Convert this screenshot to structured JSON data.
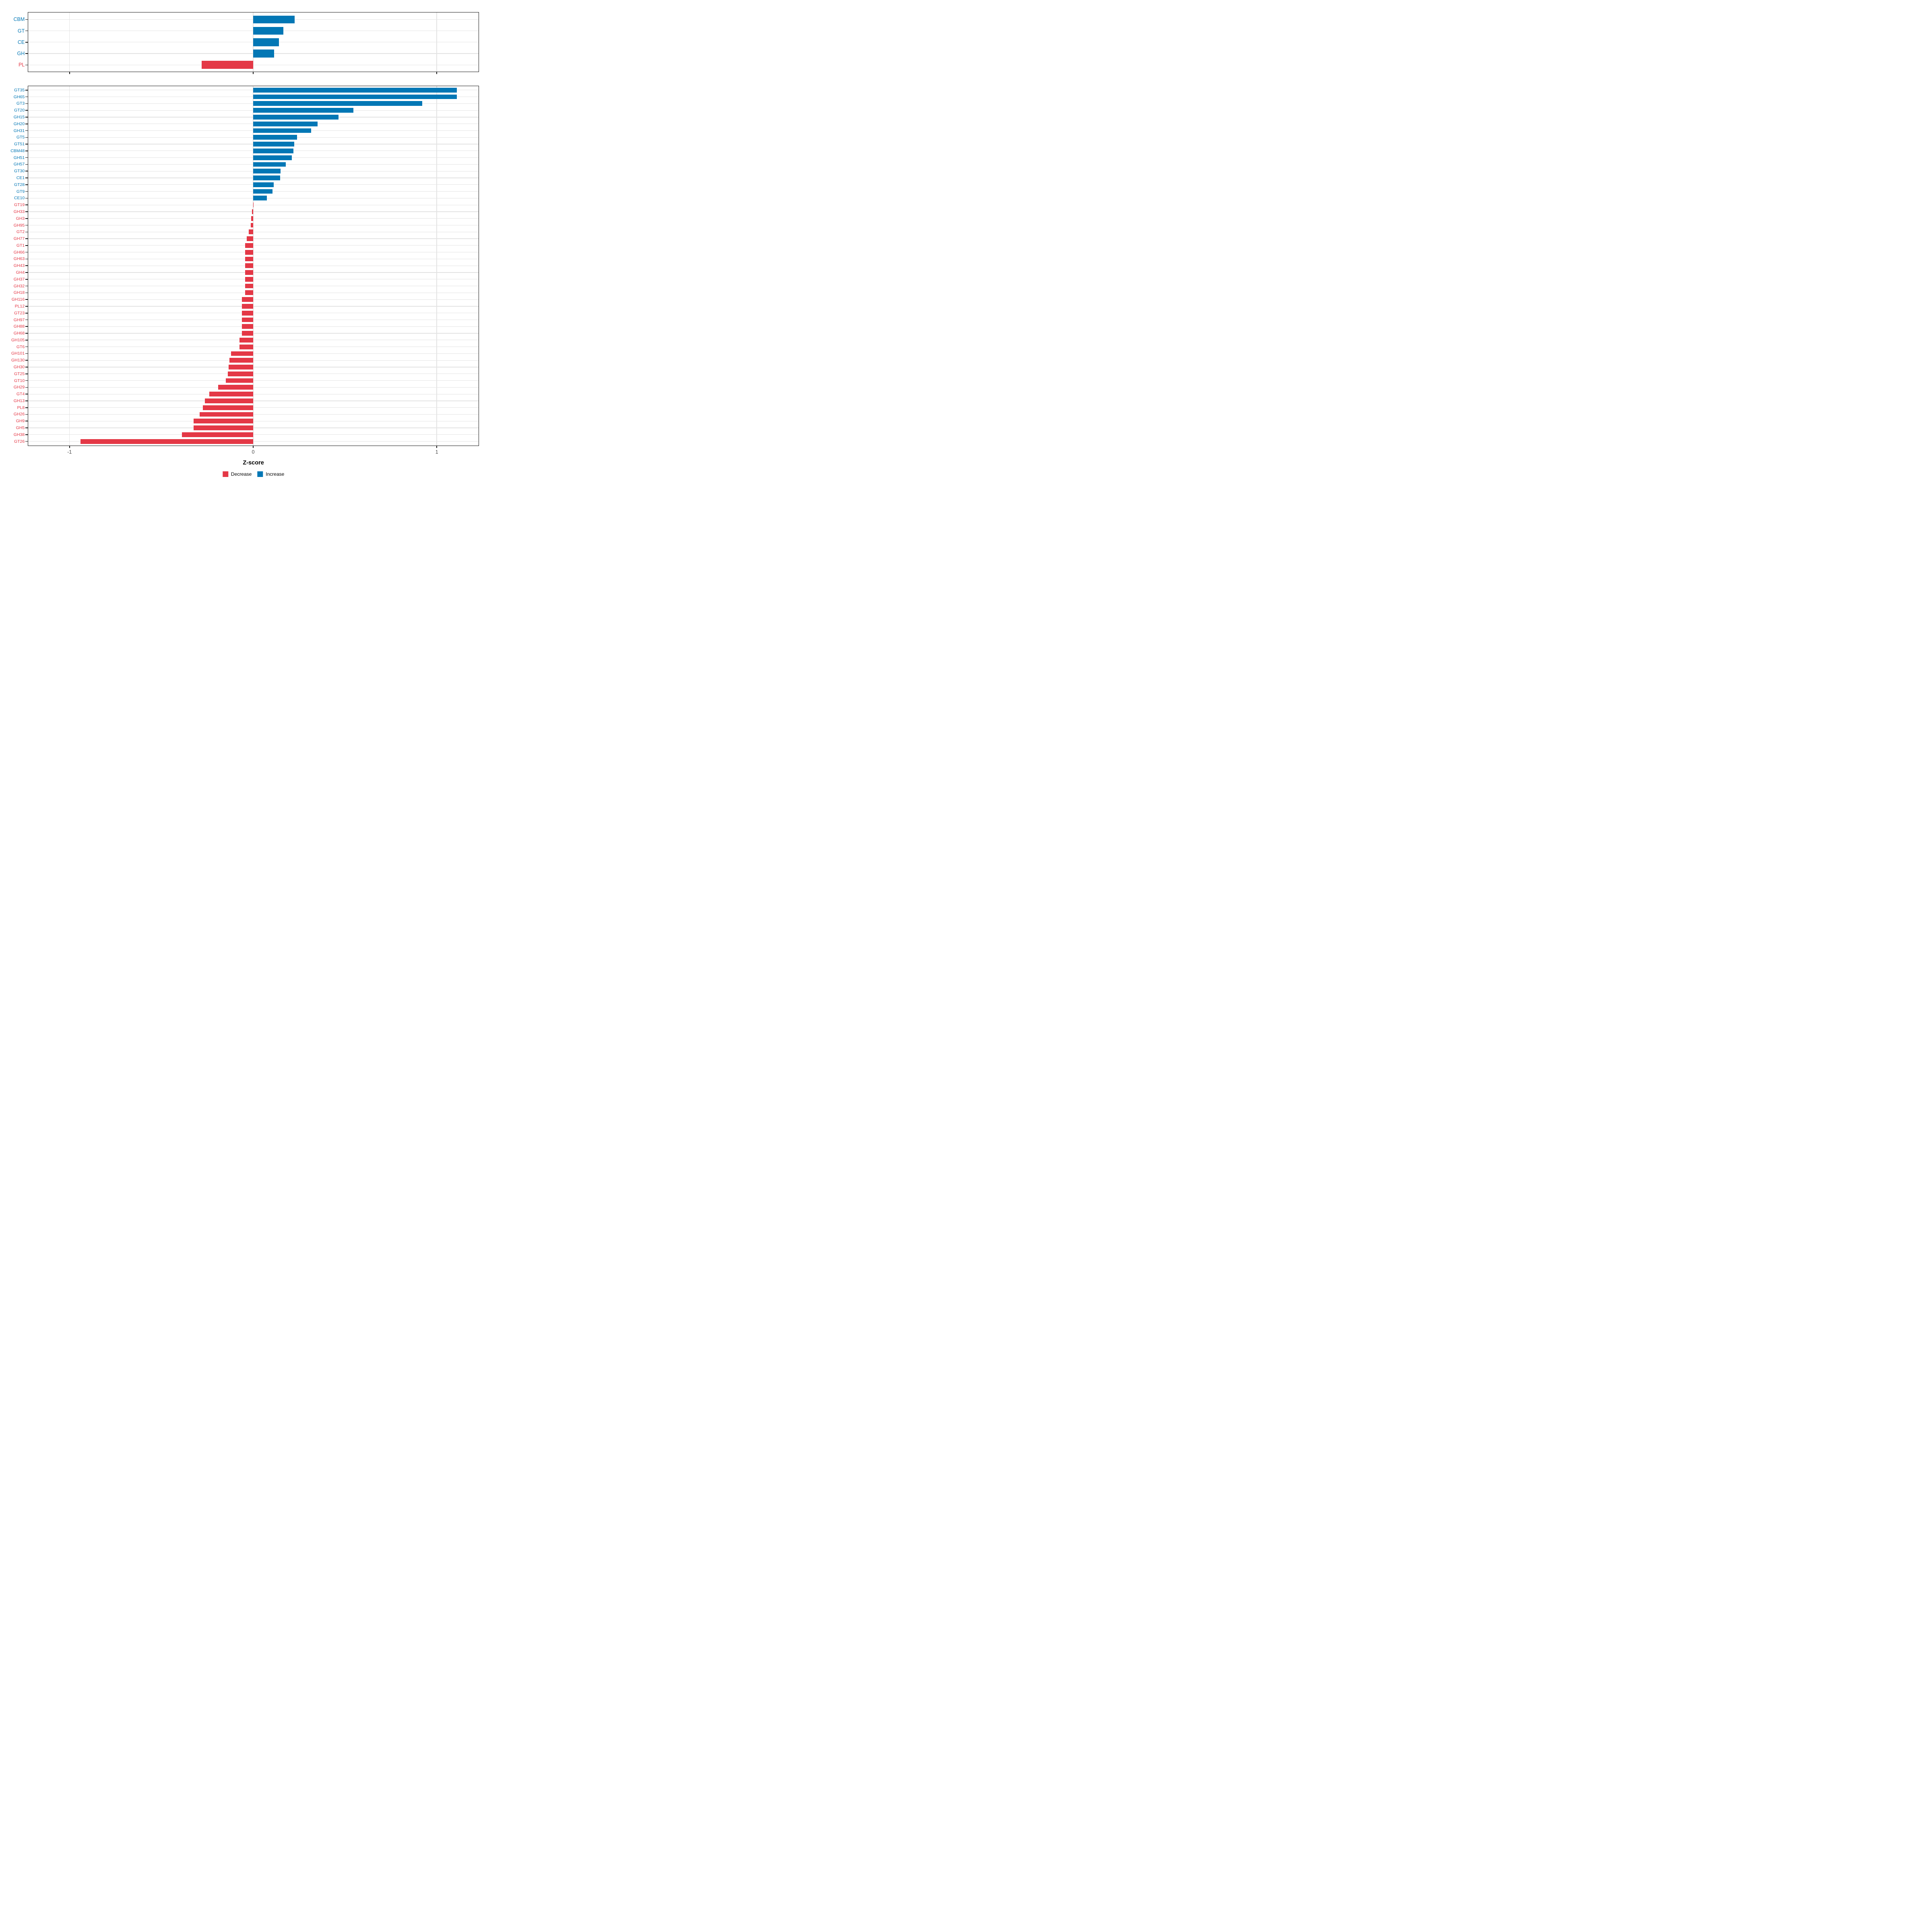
{
  "colors": {
    "increase": "#0277b5",
    "decrease": "#e43846",
    "grid": "#e3e3e3",
    "panel_border": "#1a1a1a",
    "tick_label": "#4a4a4a"
  },
  "xaxis": {
    "title": "Z-score",
    "domain": [
      -1.2248,
      1.2276
    ],
    "ticks": [
      {
        "value": -1,
        "label": "-1"
      },
      {
        "value": 0,
        "label": "0"
      },
      {
        "value": 1,
        "label": "1"
      }
    ]
  },
  "legend": [
    {
      "label": "Decrease",
      "direction": "decrease"
    },
    {
      "label": "Increase",
      "direction": "increase"
    }
  ],
  "chart_data": [
    {
      "type": "bar",
      "orientation": "horizontal",
      "panel": "top",
      "show_x_labels": false,
      "xlabel": "",
      "rows": [
        {
          "category": "CBM",
          "value": 0.225,
          "direction": "increase"
        },
        {
          "category": "GT",
          "value": 0.165,
          "direction": "increase"
        },
        {
          "category": "CE",
          "value": 0.14,
          "direction": "increase"
        },
        {
          "category": "GH",
          "value": 0.115,
          "direction": "increase"
        },
        {
          "category": "PL",
          "value": -0.28,
          "direction": "decrease"
        }
      ]
    },
    {
      "type": "bar",
      "orientation": "horizontal",
      "panel": "bottom",
      "show_x_labels": true,
      "xlabel": "Z-score",
      "rows": [
        {
          "category": "GT35",
          "value": 1.11,
          "direction": "increase"
        },
        {
          "category": "GH65",
          "value": 1.11,
          "direction": "increase"
        },
        {
          "category": "GT3",
          "value": 0.92,
          "direction": "increase"
        },
        {
          "category": "GT20",
          "value": 0.545,
          "direction": "increase"
        },
        {
          "category": "GH15",
          "value": 0.465,
          "direction": "increase"
        },
        {
          "category": "GH20",
          "value": 0.35,
          "direction": "increase"
        },
        {
          "category": "GH31",
          "value": 0.315,
          "direction": "increase"
        },
        {
          "category": "GT5",
          "value": 0.238,
          "direction": "increase"
        },
        {
          "category": "GT51",
          "value": 0.224,
          "direction": "increase"
        },
        {
          "category": "CBM48",
          "value": 0.22,
          "direction": "increase"
        },
        {
          "category": "GH51",
          "value": 0.21,
          "direction": "increase"
        },
        {
          "category": "GH57",
          "value": 0.178,
          "direction": "increase"
        },
        {
          "category": "GT30",
          "value": 0.15,
          "direction": "increase"
        },
        {
          "category": "CE1",
          "value": 0.146,
          "direction": "increase"
        },
        {
          "category": "GT28",
          "value": 0.112,
          "direction": "increase"
        },
        {
          "category": "GT9",
          "value": 0.105,
          "direction": "increase"
        },
        {
          "category": "CE10",
          "value": 0.075,
          "direction": "increase"
        },
        {
          "category": "GT19",
          "value": -0.001,
          "direction": "decrease"
        },
        {
          "category": "GH33",
          "value": -0.007,
          "direction": "decrease"
        },
        {
          "category": "GH3",
          "value": -0.011,
          "direction": "decrease"
        },
        {
          "category": "GH95",
          "value": -0.014,
          "direction": "decrease"
        },
        {
          "category": "GT2",
          "value": -0.024,
          "direction": "decrease"
        },
        {
          "category": "GH77",
          "value": -0.035,
          "direction": "decrease"
        },
        {
          "category": "GT1",
          "value": -0.044,
          "direction": "decrease"
        },
        {
          "category": "GH66",
          "value": -0.044,
          "direction": "decrease"
        },
        {
          "category": "GH63",
          "value": -0.044,
          "direction": "decrease"
        },
        {
          "category": "GH43",
          "value": -0.044,
          "direction": "decrease"
        },
        {
          "category": "GH4",
          "value": -0.044,
          "direction": "decrease"
        },
        {
          "category": "GH37",
          "value": -0.044,
          "direction": "decrease"
        },
        {
          "category": "GH32",
          "value": -0.044,
          "direction": "decrease"
        },
        {
          "category": "GH18",
          "value": -0.044,
          "direction": "decrease"
        },
        {
          "category": "GH116",
          "value": -0.061,
          "direction": "decrease"
        },
        {
          "category": "PL12",
          "value": -0.061,
          "direction": "decrease"
        },
        {
          "category": "GT23",
          "value": -0.061,
          "direction": "decrease"
        },
        {
          "category": "GH97",
          "value": -0.061,
          "direction": "decrease"
        },
        {
          "category": "GH88",
          "value": -0.061,
          "direction": "decrease"
        },
        {
          "category": "GH68",
          "value": -0.061,
          "direction": "decrease"
        },
        {
          "category": "GH105",
          "value": -0.074,
          "direction": "decrease"
        },
        {
          "category": "GT6",
          "value": -0.074,
          "direction": "decrease"
        },
        {
          "category": "GH101",
          "value": -0.121,
          "direction": "decrease"
        },
        {
          "category": "GH130",
          "value": -0.129,
          "direction": "decrease"
        },
        {
          "category": "GH30",
          "value": -0.133,
          "direction": "decrease"
        },
        {
          "category": "GT25",
          "value": -0.138,
          "direction": "decrease"
        },
        {
          "category": "GT10",
          "value": -0.148,
          "direction": "decrease"
        },
        {
          "category": "GH29",
          "value": -0.19,
          "direction": "decrease"
        },
        {
          "category": "GT4",
          "value": -0.24,
          "direction": "decrease"
        },
        {
          "category": "GH13",
          "value": -0.263,
          "direction": "decrease"
        },
        {
          "category": "PL8",
          "value": -0.274,
          "direction": "decrease"
        },
        {
          "category": "GH26",
          "value": -0.292,
          "direction": "decrease"
        },
        {
          "category": "GH9",
          "value": -0.325,
          "direction": "decrease"
        },
        {
          "category": "GH5",
          "value": -0.325,
          "direction": "decrease"
        },
        {
          "category": "GH38",
          "value": -0.388,
          "direction": "decrease"
        },
        {
          "category": "GT26",
          "value": -0.94,
          "direction": "decrease"
        }
      ]
    }
  ]
}
